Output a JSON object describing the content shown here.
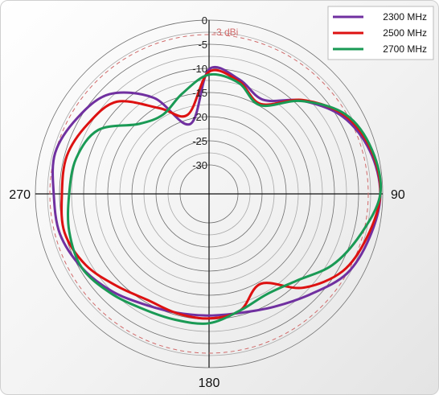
{
  "chart_data": {
    "type": "polar-line",
    "radial_axis": {
      "min": -30,
      "max": 0,
      "ticks": [
        "0",
        "-5",
        "-10",
        "-15",
        "-20",
        "-25",
        "-30"
      ],
      "tick_values": [
        0,
        -5,
        -10,
        -15,
        -20,
        -25,
        -30
      ]
    },
    "angle_labels": [
      {
        "angle": 90,
        "label": "90"
      },
      {
        "angle": 180,
        "label": "180"
      },
      {
        "angle": 270,
        "label": "270"
      }
    ],
    "reference_circle": {
      "value": -3,
      "label": "-3 dBi",
      "color": "#d06a6a"
    },
    "grid": true,
    "legend_position": "top-right",
    "angles": [
      0,
      15,
      30,
      45,
      60,
      75,
      90,
      105,
      120,
      135,
      150,
      165,
      180,
      195,
      210,
      225,
      240,
      255,
      270,
      285,
      300,
      315,
      330,
      345
    ],
    "series": [
      {
        "name": "2300 MHz",
        "color": "#7030a0",
        "values": [
          -10.2,
          -11.5,
          -13.5,
          -8.7,
          -4.0,
          -1.5,
          -0.5,
          -1.5,
          -3.0,
          -6.5,
          -9.0,
          -10.5,
          -10.8,
          -10.5,
          -9.5,
          -7.5,
          -5.5,
          -4.0,
          -3.8,
          -3.0,
          -4.5,
          -6.8,
          -13.0,
          -21.0
        ]
      },
      {
        "name": "2500 MHz",
        "color": "#dd1111",
        "values": [
          -10.7,
          -11.9,
          -14.5,
          -8.5,
          -3.5,
          -1.2,
          -0.5,
          -2.0,
          -4.0,
          -8.5,
          -14.5,
          -11.0,
          -10.2,
          -10.4,
          -10.6,
          -9.0,
          -6.5,
          -5.0,
          -5.5,
          -5.5,
          -7.0,
          -9.0,
          -15.5,
          -19.0
        ]
      },
      {
        "name": "2700 MHz",
        "color": "#1a9a55",
        "values": [
          -11.3,
          -12.2,
          -14.8,
          -8.8,
          -3.2,
          -1.0,
          -0.5,
          -3.5,
          -6.5,
          -10.5,
          -12.0,
          -11.0,
          -9.2,
          -9.0,
          -8.5,
          -7.0,
          -5.5,
          -6.0,
          -7.0,
          -7.5,
          -9.5,
          -15.5,
          -17.0,
          -14.5
        ]
      }
    ]
  }
}
